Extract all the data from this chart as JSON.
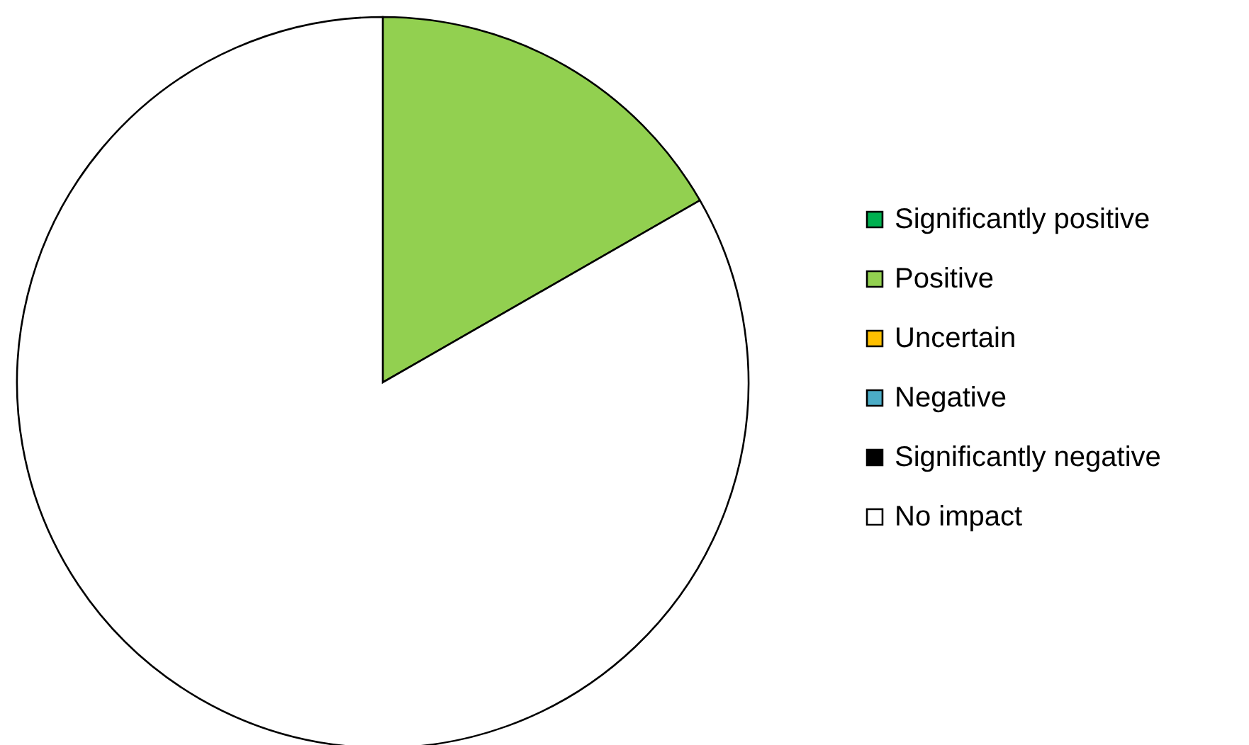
{
  "chart_data": {
    "type": "pie",
    "categories": [
      "Significantly positive",
      "Positive",
      "Uncertain",
      "Negative",
      "Significantly negative",
      "No impact"
    ],
    "values": [
      0,
      16.7,
      0,
      0,
      0,
      83.3
    ],
    "colors": [
      "#00b050",
      "#92d050",
      "#ffc000",
      "#4bacc6",
      "#000000",
      "#ffffff"
    ],
    "legend": "right"
  }
}
